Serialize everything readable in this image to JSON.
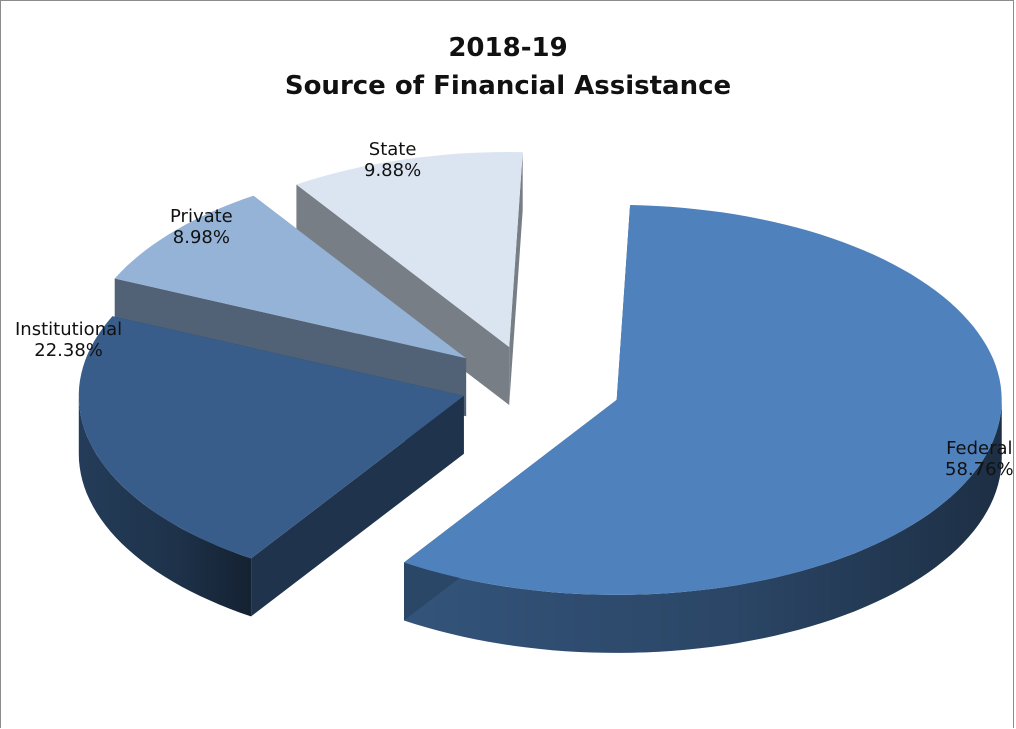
{
  "chart_data": {
    "type": "pie",
    "title_lines": [
      "2018-19",
      "Source of Financial Assistance"
    ],
    "slices": [
      {
        "label": "Federal",
        "value": 58.76,
        "display": "58.76%",
        "color": "#4f81bd"
      },
      {
        "label": "Institutional",
        "value": 22.38,
        "display": "22.38%",
        "color": "#385d8a"
      },
      {
        "label": "Private",
        "value": 8.98,
        "display": "8.98%",
        "color": "#95b3d7"
      },
      {
        "label": "State",
        "value": 9.88,
        "display": "9.88%",
        "color": "#dbe5f1"
      }
    ],
    "exploded": true,
    "three_d": true,
    "legend": "none"
  }
}
